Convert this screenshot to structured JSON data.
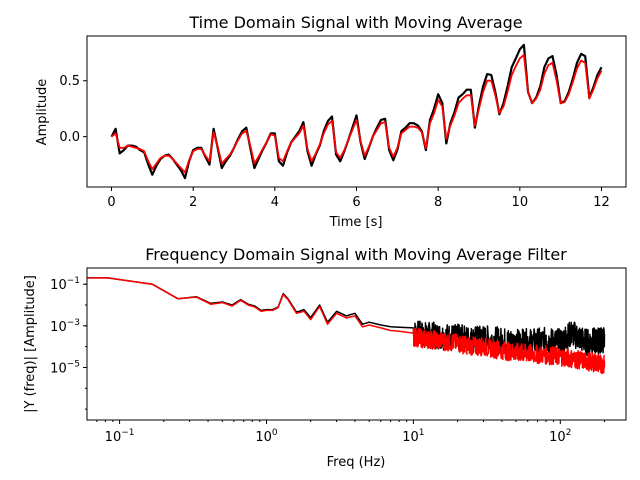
{
  "chart_data": [
    {
      "type": "line",
      "title": "Time Domain Signal with Moving Average",
      "xlabel": "Time [s]",
      "ylabel": "Amplitude",
      "xlim": [
        -0.6,
        12.6
      ],
      "ylim": [
        -0.45,
        0.9
      ],
      "xticks": [
        "0",
        "2",
        "4",
        "6",
        "8",
        "10",
        "12"
      ],
      "yticks": [
        "0.0",
        "0.5"
      ],
      "grid": false,
      "series": [
        {
          "color": "#000000",
          "role": "raw signal",
          "x": [
            0,
            0.1,
            0.2,
            0.3,
            0.4,
            0.5,
            0.6,
            0.7,
            0.8,
            0.9,
            1.0,
            1.1,
            1.2,
            1.3,
            1.4,
            1.5,
            1.6,
            1.7,
            1.8,
            1.9,
            2.0,
            2.1,
            2.2,
            2.3,
            2.4,
            2.5,
            2.6,
            2.7,
            2.8,
            2.9,
            3.0,
            3.1,
            3.2,
            3.3,
            3.4,
            3.5,
            3.6,
            3.7,
            3.8,
            3.9,
            4.0,
            4.1,
            4.2,
            4.3,
            4.4,
            4.5,
            4.6,
            4.7,
            4.8,
            4.9,
            5.0,
            5.1,
            5.2,
            5.3,
            5.4,
            5.5,
            5.6,
            5.7,
            5.8,
            5.9,
            6.0,
            6.1,
            6.2,
            6.3,
            6.4,
            6.5,
            6.6,
            6.7,
            6.8,
            6.9,
            7.0,
            7.1,
            7.2,
            7.3,
            7.4,
            7.5,
            7.6,
            7.7,
            7.8,
            7.9,
            8.0,
            8.1,
            8.2,
            8.3,
            8.4,
            8.5,
            8.6,
            8.7,
            8.8,
            8.9,
            9.0,
            9.1,
            9.2,
            9.3,
            9.4,
            9.5,
            9.6,
            9.7,
            9.8,
            9.9,
            10.0,
            10.1,
            10.2,
            10.3,
            10.4,
            10.5,
            10.6,
            10.7,
            10.8,
            10.9,
            11.0,
            11.1,
            11.2,
            11.3,
            11.4,
            11.5,
            11.6,
            11.7,
            11.8,
            11.9,
            12.0
          ],
          "y": [
            0.0,
            0.07,
            -0.15,
            -0.12,
            -0.08,
            -0.08,
            -0.09,
            -0.12,
            -0.14,
            -0.25,
            -0.34,
            -0.26,
            -0.2,
            -0.17,
            -0.16,
            -0.2,
            -0.25,
            -0.3,
            -0.37,
            -0.22,
            -0.12,
            -0.1,
            -0.1,
            -0.18,
            -0.25,
            0.07,
            -0.1,
            -0.28,
            -0.22,
            -0.17,
            -0.1,
            -0.02,
            0.05,
            0.08,
            -0.1,
            -0.28,
            -0.2,
            -0.12,
            -0.05,
            0.03,
            0.03,
            -0.22,
            -0.26,
            -0.14,
            -0.05,
            0.0,
            0.05,
            0.13,
            -0.13,
            -0.26,
            -0.16,
            -0.08,
            0.05,
            0.14,
            0.18,
            -0.16,
            -0.22,
            -0.13,
            -0.03,
            0.08,
            0.19,
            -0.05,
            -0.2,
            -0.1,
            0.0,
            0.08,
            0.15,
            0.16,
            -0.12,
            -0.21,
            -0.12,
            0.05,
            0.08,
            0.12,
            0.12,
            0.1,
            0.05,
            -0.12,
            0.15,
            0.25,
            0.38,
            0.3,
            -0.06,
            0.12,
            0.22,
            0.35,
            0.38,
            0.42,
            0.42,
            0.08,
            0.28,
            0.45,
            0.56,
            0.55,
            0.4,
            0.2,
            0.3,
            0.45,
            0.62,
            0.7,
            0.78,
            0.82,
            0.4,
            0.3,
            0.35,
            0.45,
            0.62,
            0.7,
            0.72,
            0.55,
            0.3,
            0.32,
            0.4,
            0.52,
            0.66,
            0.74,
            0.72,
            0.35,
            0.44,
            0.55,
            0.62
          ]
        },
        {
          "color": "#ff0000",
          "role": "moving average",
          "x": [
            0,
            0.1,
            0.2,
            0.3,
            0.4,
            0.5,
            0.6,
            0.7,
            0.8,
            0.9,
            1.0,
            1.1,
            1.2,
            1.3,
            1.4,
            1.5,
            1.6,
            1.7,
            1.8,
            1.9,
            2.0,
            2.1,
            2.2,
            2.3,
            2.4,
            2.5,
            2.6,
            2.7,
            2.8,
            2.9,
            3.0,
            3.1,
            3.2,
            3.3,
            3.4,
            3.5,
            3.6,
            3.7,
            3.8,
            3.9,
            4.0,
            4.1,
            4.2,
            4.3,
            4.4,
            4.5,
            4.6,
            4.7,
            4.8,
            4.9,
            5.0,
            5.1,
            5.2,
            5.3,
            5.4,
            5.5,
            5.6,
            5.7,
            5.8,
            5.9,
            6.0,
            6.1,
            6.2,
            6.3,
            6.4,
            6.5,
            6.6,
            6.7,
            6.8,
            6.9,
            7.0,
            7.1,
            7.2,
            7.3,
            7.4,
            7.5,
            7.6,
            7.7,
            7.8,
            7.9,
            8.0,
            8.1,
            8.2,
            8.3,
            8.4,
            8.5,
            8.6,
            8.7,
            8.8,
            8.9,
            9.0,
            9.1,
            9.2,
            9.3,
            9.4,
            9.5,
            9.6,
            9.7,
            9.8,
            9.9,
            10.0,
            10.1,
            10.2,
            10.3,
            10.4,
            10.5,
            10.6,
            10.7,
            10.8,
            10.9,
            11.0,
            11.1,
            11.2,
            11.3,
            11.4,
            11.5,
            11.6,
            11.7,
            11.8,
            11.9,
            12.0
          ],
          "y": [
            0.0,
            0.03,
            -0.1,
            -0.1,
            -0.08,
            -0.09,
            -0.1,
            -0.11,
            -0.13,
            -0.22,
            -0.29,
            -0.24,
            -0.19,
            -0.17,
            -0.17,
            -0.2,
            -0.24,
            -0.28,
            -0.32,
            -0.21,
            -0.13,
            -0.11,
            -0.11,
            -0.17,
            -0.22,
            0.04,
            -0.09,
            -0.24,
            -0.2,
            -0.16,
            -0.1,
            -0.03,
            0.03,
            0.05,
            -0.08,
            -0.24,
            -0.18,
            -0.11,
            -0.05,
            0.02,
            0.01,
            -0.19,
            -0.22,
            -0.13,
            -0.05,
            -0.01,
            0.03,
            0.1,
            -0.11,
            -0.22,
            -0.15,
            -0.07,
            0.03,
            0.11,
            0.14,
            -0.14,
            -0.19,
            -0.12,
            -0.03,
            0.06,
            0.15,
            -0.04,
            -0.17,
            -0.09,
            0.0,
            0.06,
            0.12,
            0.13,
            -0.1,
            -0.18,
            -0.1,
            0.03,
            0.06,
            0.09,
            0.09,
            0.08,
            0.04,
            -0.1,
            0.12,
            0.21,
            0.33,
            0.27,
            -0.02,
            0.1,
            0.19,
            0.3,
            0.34,
            0.37,
            0.37,
            0.1,
            0.25,
            0.4,
            0.5,
            0.5,
            0.37,
            0.21,
            0.27,
            0.4,
            0.55,
            0.63,
            0.7,
            0.73,
            0.4,
            0.3,
            0.34,
            0.42,
            0.56,
            0.64,
            0.66,
            0.5,
            0.3,
            0.31,
            0.38,
            0.49,
            0.61,
            0.68,
            0.66,
            0.34,
            0.42,
            0.52,
            0.59
          ]
        }
      ]
    },
    {
      "type": "line",
      "title": "Frequency Domain Signal with Moving Average Filter",
      "xlabel": "Freq (Hz)",
      "ylabel": "|Y (freq)| [Amplitude]",
      "xscale": "log",
      "yscale": "log",
      "xlim": [
        0.06,
        280
      ],
      "ylim": [
        3e-08,
        0.6
      ],
      "xticks": [
        "10^-1",
        "10^0",
        "10^1",
        "10^2"
      ],
      "yticks": [
        "10^-5",
        "10^-3",
        "10^-1"
      ],
      "grid": false,
      "series": [
        {
          "color": "#000000",
          "role": "raw spectrum",
          "x": [
            0.06,
            0.083,
            0.167,
            0.25,
            0.333,
            0.417,
            0.5,
            0.583,
            0.667,
            0.75,
            0.833,
            0.917,
            1.0,
            1.1,
            1.2,
            1.3,
            1.4,
            1.6,
            1.8,
            2.0,
            2.3,
            2.6,
            3.0,
            3.5,
            4.0,
            4.5,
            5.0,
            6,
            7,
            8,
            10,
            12,
            15,
            20,
            25,
            30,
            40,
            50,
            60,
            80,
            100,
            120,
            150,
            180,
            200
          ],
          "y": [
            0.2,
            0.2,
            0.1,
            0.02,
            0.025,
            0.012,
            0.014,
            0.01,
            0.018,
            0.011,
            0.009,
            0.0055,
            0.006,
            0.006,
            0.008,
            0.035,
            0.02,
            0.0045,
            0.006,
            0.0025,
            0.01,
            0.0015,
            0.005,
            0.003,
            0.004,
            0.0012,
            0.0015,
            0.0011,
            0.0009,
            0.00085,
            0.0008,
            0.00065,
            0.0006,
            0.0005,
            0.0004,
            0.00045,
            0.00035,
            0.0003,
            0.0003,
            0.00035,
            0.0003,
            0.0008,
            0.0003,
            0.00035,
            0.0004
          ]
        },
        {
          "color": "#ff0000",
          "role": "filtered spectrum",
          "x": [
            0.06,
            0.083,
            0.167,
            0.25,
            0.333,
            0.417,
            0.5,
            0.583,
            0.667,
            0.75,
            0.833,
            0.917,
            1.0,
            1.1,
            1.2,
            1.3,
            1.4,
            1.6,
            1.8,
            2.0,
            2.3,
            2.6,
            3.0,
            3.5,
            4.0,
            4.5,
            5.0,
            6,
            7,
            8,
            10,
            12,
            15,
            20,
            25,
            30,
            40,
            50,
            60,
            80,
            100,
            120,
            150,
            180,
            200
          ],
          "y": [
            0.2,
            0.2,
            0.1,
            0.02,
            0.024,
            0.011,
            0.013,
            0.009,
            0.017,
            0.01,
            0.008,
            0.005,
            0.0055,
            0.0055,
            0.0075,
            0.032,
            0.018,
            0.004,
            0.005,
            0.002,
            0.0085,
            0.0012,
            0.004,
            0.0024,
            0.003,
            0.0009,
            0.0011,
            0.0008,
            0.0006,
            0.00055,
            0.00045,
            0.00035,
            0.0003,
            0.00022,
            0.00016,
            0.00015,
            0.0001,
            8e-05,
            7e-05,
            6e-05,
            5e-05,
            4e-05,
            3e-05,
            2.5e-05,
            2e-05
          ]
        }
      ]
    }
  ]
}
